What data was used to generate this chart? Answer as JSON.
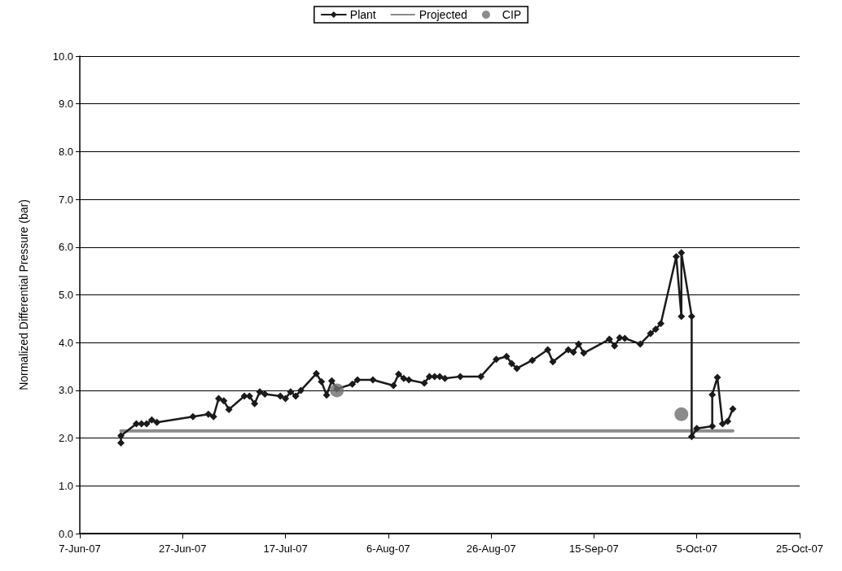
{
  "chart_data": {
    "type": "line",
    "ylabel": "Normalized Differential Pressure (bar)",
    "xlim": [
      "2007-06-07",
      "2007-10-25"
    ],
    "xticks": [
      {
        "value": "2007-06-07",
        "label": "7-Jun-07"
      },
      {
        "value": "2007-06-27",
        "label": "27-Jun-07"
      },
      {
        "value": "2007-07-17",
        "label": "17-Jul-07"
      },
      {
        "value": "2007-08-06",
        "label": "6-Aug-07"
      },
      {
        "value": "2007-08-26",
        "label": "26-Aug-07"
      },
      {
        "value": "2007-09-15",
        "label": "15-Sep-07"
      },
      {
        "value": "2007-10-05",
        "label": "5-Oct-07"
      },
      {
        "value": "2007-10-25",
        "label": "25-Oct-07"
      }
    ],
    "ylim": [
      0,
      10
    ],
    "yticks": [
      {
        "value": 0,
        "label": "0.0"
      },
      {
        "value": 1,
        "label": "1.0"
      },
      {
        "value": 2,
        "label": "2.0"
      },
      {
        "value": 3,
        "label": "3.0"
      },
      {
        "value": 4,
        "label": "4.0"
      },
      {
        "value": 5,
        "label": "5.0"
      },
      {
        "value": 6,
        "label": "6.0"
      },
      {
        "value": 7,
        "label": "7.0"
      },
      {
        "value": 8,
        "label": "8.0"
      },
      {
        "value": 9,
        "label": "9.0"
      },
      {
        "value": 10,
        "label": "10.0"
      }
    ],
    "grid": "y",
    "legend": "top",
    "series": [
      {
        "name": "Plant",
        "color": "#1a1a1a",
        "marker": "diamond",
        "x": [
          "2007-06-15",
          "2007-06-15",
          "2007-06-18",
          "2007-06-19",
          "2007-06-20",
          "2007-06-21",
          "2007-06-22",
          "2007-06-29",
          "2007-07-02",
          "2007-07-03",
          "2007-07-04",
          "2007-07-05",
          "2007-07-06",
          "2007-07-09",
          "2007-07-10",
          "2007-07-11",
          "2007-07-12",
          "2007-07-13",
          "2007-07-16",
          "2007-07-17",
          "2007-07-18",
          "2007-07-19",
          "2007-07-20",
          "2007-07-23",
          "2007-07-24",
          "2007-07-25",
          "2007-07-26",
          "2007-07-27",
          "2007-07-30",
          "2007-07-31",
          "2007-08-03",
          "2007-08-07",
          "2007-08-08",
          "2007-08-09",
          "2007-08-10",
          "2007-08-13",
          "2007-08-14",
          "2007-08-15",
          "2007-08-16",
          "2007-08-17",
          "2007-08-20",
          "2007-08-24",
          "2007-08-27",
          "2007-08-29",
          "2007-08-30",
          "2007-08-31",
          "2007-09-03",
          "2007-09-06",
          "2007-09-07",
          "2007-09-10",
          "2007-09-11",
          "2007-09-12",
          "2007-09-13",
          "2007-09-18",
          "2007-09-19",
          "2007-09-20",
          "2007-09-21",
          "2007-09-24",
          "2007-09-26",
          "2007-09-27",
          "2007-09-28",
          "2007-10-01",
          "2007-10-02",
          "2007-10-02",
          "2007-10-04",
          "2007-10-04",
          "2007-10-05",
          "2007-10-08",
          "2007-10-08",
          "2007-10-09",
          "2007-10-10",
          "2007-10-11",
          "2007-10-12"
        ],
        "values": [
          1.9,
          2.05,
          2.3,
          2.3,
          2.3,
          2.38,
          2.33,
          2.45,
          2.5,
          2.45,
          2.83,
          2.78,
          2.6,
          2.88,
          2.88,
          2.72,
          2.97,
          2.92,
          2.88,
          2.83,
          2.97,
          2.88,
          3.0,
          3.35,
          3.18,
          2.9,
          3.2,
          3.03,
          3.13,
          3.22,
          3.22,
          3.1,
          3.34,
          3.25,
          3.22,
          3.15,
          3.29,
          3.29,
          3.29,
          3.25,
          3.29,
          3.29,
          3.65,
          3.71,
          3.56,
          3.46,
          3.63,
          3.85,
          3.6,
          3.85,
          3.8,
          3.97,
          3.78,
          4.07,
          3.93,
          4.1,
          4.09,
          3.97,
          4.19,
          4.28,
          4.4,
          5.8,
          4.55,
          5.88,
          4.55,
          2.03,
          2.2,
          2.25,
          2.91,
          3.27,
          2.3,
          2.35,
          2.61
        ]
      },
      {
        "name": "Projected",
        "color": "#8c8c8c",
        "marker": "none",
        "x": [
          "2007-06-15",
          "2007-10-12"
        ],
        "values": [
          2.15,
          2.15
        ]
      },
      {
        "name": "CIP",
        "type": "scatter",
        "color": "#6e6e6e",
        "marker": "circle",
        "x": [
          "2007-07-27",
          "2007-10-02"
        ],
        "values": [
          3.0,
          2.5
        ]
      }
    ]
  }
}
